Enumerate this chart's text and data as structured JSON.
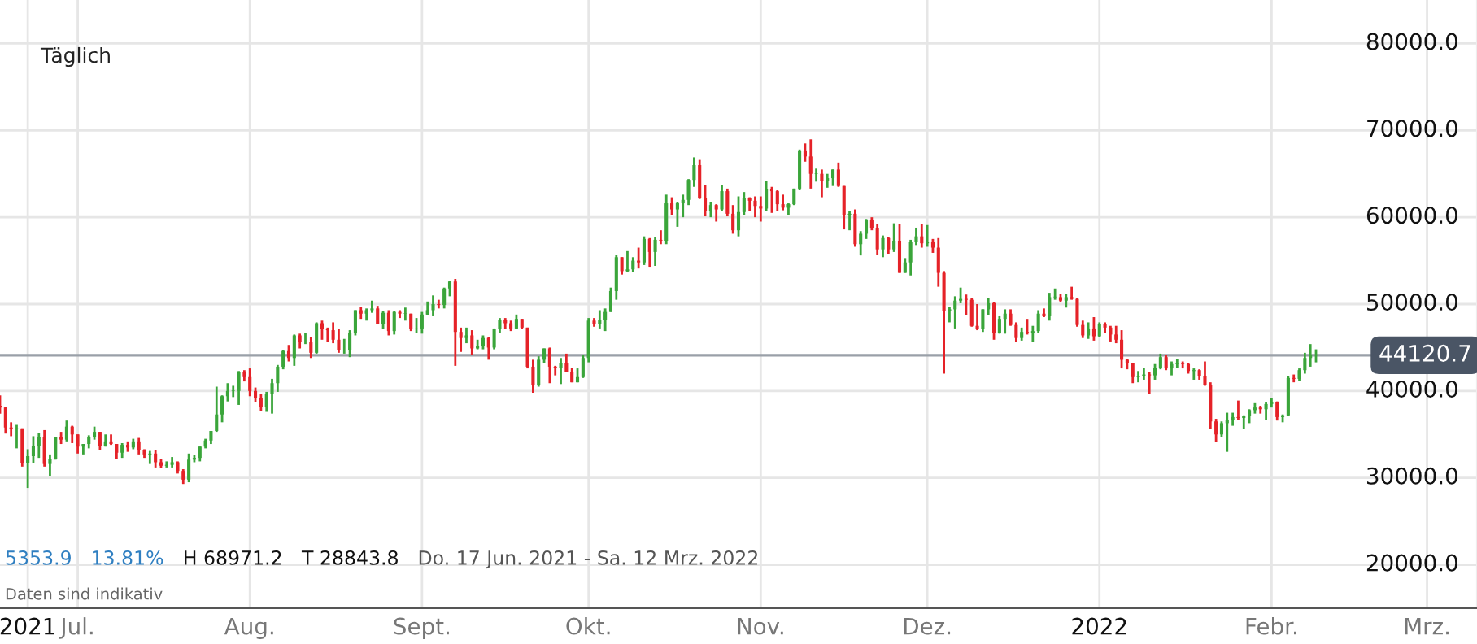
{
  "chart_data": {
    "type": "candlestick",
    "annotations": [
      "Täglich",
      "5353.9",
      "13.81%",
      "H 68971.2",
      "T 28843.8",
      "Do. 17 Jun. 2021 - Sa. 12 Mrz. 2022",
      "Daten sind indikativ"
    ],
    "x": [
      "2021-06-17",
      "2021-06-18",
      "2021-06-19",
      "2021-06-20",
      "2021-06-21",
      "2021-06-22",
      "2021-06-23",
      "2021-06-24",
      "2021-06-25",
      "2021-06-26",
      "2021-06-27",
      "2021-06-28",
      "2021-06-29",
      "2021-06-30",
      "2021-07-01",
      "2021-07-02",
      "2021-07-03",
      "2021-07-04",
      "2021-07-05",
      "2021-07-06",
      "2021-07-07",
      "2021-07-08",
      "2021-07-09",
      "2021-07-10",
      "2021-07-11",
      "2021-07-12",
      "2021-07-13",
      "2021-07-14",
      "2021-07-15",
      "2021-07-16",
      "2021-07-17",
      "2021-07-18",
      "2021-07-19",
      "2021-07-20",
      "2021-07-21",
      "2021-07-22",
      "2021-07-23",
      "2021-07-24",
      "2021-07-25",
      "2021-07-26",
      "2021-07-27",
      "2021-07-28",
      "2021-07-29",
      "2021-07-30",
      "2021-07-31",
      "2021-08-01",
      "2021-08-02",
      "2021-08-03",
      "2021-08-04",
      "2021-08-05",
      "2021-08-06",
      "2021-08-07",
      "2021-08-08",
      "2021-08-09",
      "2021-08-10",
      "2021-08-11",
      "2021-08-12",
      "2021-08-13",
      "2021-08-14",
      "2021-08-15",
      "2021-08-16",
      "2021-08-17",
      "2021-08-18",
      "2021-08-19",
      "2021-08-20",
      "2021-08-21",
      "2021-08-22",
      "2021-08-23",
      "2021-08-24",
      "2021-08-25",
      "2021-08-26",
      "2021-08-27",
      "2021-08-28",
      "2021-08-29",
      "2021-08-30",
      "2021-08-31",
      "2021-09-01",
      "2021-09-02",
      "2021-09-03",
      "2021-09-04",
      "2021-09-05",
      "2021-09-06",
      "2021-09-07",
      "2021-09-08",
      "2021-09-09",
      "2021-09-10",
      "2021-09-11",
      "2021-09-12",
      "2021-09-13",
      "2021-09-14",
      "2021-09-15",
      "2021-09-16",
      "2021-09-17",
      "2021-09-18",
      "2021-09-19",
      "2021-09-20",
      "2021-09-21",
      "2021-09-22",
      "2021-09-23",
      "2021-09-24",
      "2021-09-25",
      "2021-09-26",
      "2021-09-27",
      "2021-09-28",
      "2021-09-29",
      "2021-09-30",
      "2021-10-01",
      "2021-10-02",
      "2021-10-03",
      "2021-10-04",
      "2021-10-05",
      "2021-10-06",
      "2021-10-07",
      "2021-10-08",
      "2021-10-09",
      "2021-10-10",
      "2021-10-11",
      "2021-10-12",
      "2021-10-13",
      "2021-10-14",
      "2021-10-15",
      "2021-10-16",
      "2021-10-17",
      "2021-10-18",
      "2021-10-19",
      "2021-10-20",
      "2021-10-21",
      "2021-10-22",
      "2021-10-23",
      "2021-10-24",
      "2021-10-25",
      "2021-10-26",
      "2021-10-27",
      "2021-10-28",
      "2021-10-29",
      "2021-10-30",
      "2021-10-31",
      "2021-11-01",
      "2021-11-02",
      "2021-11-03",
      "2021-11-04",
      "2021-11-05",
      "2021-11-06",
      "2021-11-07",
      "2021-11-08",
      "2021-11-09",
      "2021-11-10",
      "2021-11-11",
      "2021-11-12",
      "2021-11-13",
      "2021-11-14",
      "2021-11-15",
      "2021-11-16",
      "2021-11-17",
      "2021-11-18",
      "2021-11-19",
      "2021-11-20",
      "2021-11-21",
      "2021-11-22",
      "2021-11-23",
      "2021-11-24",
      "2021-11-25",
      "2021-11-26",
      "2021-11-27",
      "2021-11-28",
      "2021-11-29",
      "2021-11-30",
      "2021-12-01",
      "2021-12-02",
      "2021-12-03",
      "2021-12-04",
      "2021-12-05",
      "2021-12-06",
      "2021-12-07",
      "2021-12-08",
      "2021-12-09",
      "2021-12-10",
      "2021-12-11",
      "2021-12-12",
      "2021-12-13",
      "2021-12-14",
      "2021-12-15",
      "2021-12-16",
      "2021-12-17",
      "2021-12-18",
      "2021-12-19",
      "2021-12-20",
      "2021-12-21",
      "2021-12-22",
      "2021-12-23",
      "2021-12-24",
      "2021-12-25",
      "2021-12-26",
      "2021-12-27",
      "2021-12-28",
      "2021-12-29",
      "2021-12-30",
      "2021-12-31",
      "2022-01-01",
      "2022-01-02",
      "2022-01-03",
      "2022-01-04",
      "2022-01-05",
      "2022-01-06",
      "2022-01-07",
      "2022-01-08",
      "2022-01-09",
      "2022-01-10",
      "2022-01-11",
      "2022-01-12",
      "2022-01-13",
      "2022-01-14",
      "2022-01-15",
      "2022-01-16",
      "2022-01-17",
      "2022-01-18",
      "2022-01-19",
      "2022-01-20",
      "2022-01-21",
      "2022-01-22",
      "2022-01-23",
      "2022-01-24",
      "2022-01-25",
      "2022-01-26",
      "2022-01-27",
      "2022-01-28",
      "2022-01-29",
      "2022-01-30",
      "2022-01-31",
      "2022-02-01",
      "2022-02-02",
      "2022-02-03",
      "2022-02-04",
      "2022-02-05",
      "2022-02-06",
      "2022-02-07",
      "2022-02-08",
      "2022-02-09"
    ],
    "ohlc": [
      [
        38300,
        39500,
        37400,
        38100
      ],
      [
        38100,
        38200,
        35100,
        35800
      ],
      [
        35800,
        36400,
        34800,
        35600
      ],
      [
        35600,
        36100,
        33400,
        35700
      ],
      [
        35700,
        35700,
        31300,
        31700
      ],
      [
        31700,
        33300,
        28843.8,
        32500
      ],
      [
        32500,
        34800,
        31700,
        33700
      ],
      [
        33700,
        35200,
        32300,
        34700
      ],
      [
        34700,
        35500,
        31300,
        31600
      ],
      [
        31600,
        32700,
        30200,
        32200
      ],
      [
        32200,
        34700,
        32100,
        34700
      ],
      [
        34700,
        35300,
        33900,
        34400
      ],
      [
        34400,
        36600,
        34200,
        35900
      ],
      [
        35900,
        36000,
        34000,
        35000
      ],
      [
        35000,
        35000,
        32800,
        33600
      ],
      [
        33600,
        33900,
        32700,
        33900
      ],
      [
        33900,
        34900,
        33400,
        34700
      ],
      [
        34700,
        35900,
        34400,
        35300
      ],
      [
        35300,
        35300,
        33200,
        33700
      ],
      [
        33700,
        35000,
        33600,
        34200
      ],
      [
        34200,
        35000,
        33800,
        33900
      ],
      [
        33900,
        33900,
        32200,
        32900
      ],
      [
        32900,
        34000,
        32300,
        33800
      ],
      [
        33800,
        34200,
        33000,
        33500
      ],
      [
        33500,
        34500,
        33300,
        34200
      ],
      [
        34200,
        34600,
        32700,
        33200
      ],
      [
        33200,
        33300,
        32300,
        32700
      ],
      [
        32700,
        33100,
        31600,
        32800
      ],
      [
        32800,
        33200,
        31200,
        31800
      ],
      [
        31800,
        32200,
        31100,
        31400
      ],
      [
        31400,
        31900,
        31200,
        31500
      ],
      [
        31500,
        32400,
        31200,
        31800
      ],
      [
        31800,
        31900,
        30500,
        30800
      ],
      [
        30800,
        31000,
        29300,
        29800
      ],
      [
        29800,
        32800,
        29500,
        32100
      ],
      [
        32100,
        32600,
        31800,
        32300
      ],
      [
        32300,
        33600,
        31900,
        33600
      ],
      [
        33600,
        34500,
        33400,
        34300
      ],
      [
        34300,
        35400,
        33900,
        35400
      ],
      [
        35400,
        40500,
        35300,
        37300
      ],
      [
        37300,
        39500,
        36400,
        39400
      ],
      [
        39400,
        40900,
        38800,
        40000
      ],
      [
        40000,
        40600,
        39300,
        40000
      ],
      [
        40000,
        42300,
        38400,
        42200
      ],
      [
        42200,
        42400,
        41100,
        41600
      ],
      [
        41600,
        42600,
        39400,
        40000
      ],
      [
        40000,
        40400,
        38700,
        39200
      ],
      [
        39200,
        39700,
        37700,
        38200
      ],
      [
        38200,
        39900,
        37600,
        39700
      ],
      [
        39700,
        41400,
        37400,
        40900
      ],
      [
        40900,
        43000,
        39900,
        42800
      ],
      [
        42800,
        44700,
        42500,
        44600
      ],
      [
        44600,
        45300,
        43400,
        43800
      ],
      [
        43800,
        46500,
        42900,
        46400
      ],
      [
        46400,
        46600,
        44900,
        45600
      ],
      [
        45600,
        46700,
        45400,
        45600
      ],
      [
        45600,
        46200,
        43800,
        44400
      ],
      [
        44400,
        47900,
        44300,
        47800
      ],
      [
        47800,
        48100,
        45900,
        47100
      ],
      [
        47100,
        47300,
        45600,
        47000
      ],
      [
        47000,
        47900,
        45500,
        45900
      ],
      [
        45900,
        47100,
        44400,
        44700
      ],
      [
        44700,
        46000,
        44300,
        44700
      ],
      [
        44700,
        47000,
        43900,
        46700
      ],
      [
        46700,
        49300,
        46400,
        49300
      ],
      [
        49300,
        49700,
        48300,
        48900
      ],
      [
        48900,
        49500,
        48100,
        49300
      ],
      [
        49300,
        50400,
        49000,
        49500
      ],
      [
        49500,
        49800,
        47700,
        47700
      ],
      [
        47700,
        49200,
        47100,
        49000
      ],
      [
        49000,
        49300,
        46400,
        46900
      ],
      [
        46900,
        49200,
        46500,
        49100
      ],
      [
        49100,
        49300,
        48400,
        48900
      ],
      [
        48900,
        49600,
        48100,
        48900
      ],
      [
        48900,
        48900,
        46900,
        47100
      ],
      [
        47100,
        48400,
        46700,
        47200
      ],
      [
        47200,
        49100,
        46600,
        48800
      ],
      [
        48800,
        50300,
        48700,
        49300
      ],
      [
        49300,
        51000,
        48600,
        50000
      ],
      [
        50000,
        50500,
        49500,
        49900
      ],
      [
        49900,
        51900,
        49500,
        51800
      ],
      [
        51800,
        52700,
        50900,
        52600
      ],
      [
        52600,
        52900,
        42900,
        46800
      ],
      [
        46800,
        47300,
        44500,
        46100
      ],
      [
        46100,
        47300,
        45500,
        46400
      ],
      [
        46400,
        47000,
        44200,
        44900
      ],
      [
        44900,
        45900,
        44800,
        45200
      ],
      [
        45200,
        46400,
        44800,
        46100
      ],
      [
        46100,
        46200,
        43600,
        45000
      ],
      [
        45000,
        47200,
        44800,
        47100
      ],
      [
        47100,
        48400,
        46700,
        48200
      ],
      [
        48200,
        48400,
        47100,
        47800
      ],
      [
        47800,
        48100,
        46900,
        47200
      ],
      [
        47200,
        48800,
        47100,
        48300
      ],
      [
        48300,
        48300,
        47100,
        47300
      ],
      [
        47300,
        47300,
        42600,
        42800
      ],
      [
        42800,
        43600,
        39800,
        40700
      ],
      [
        40700,
        44000,
        40500,
        43600
      ],
      [
        43600,
        44900,
        43200,
        44900
      ],
      [
        44900,
        45000,
        40900,
        42800
      ],
      [
        42800,
        42900,
        41800,
        42700
      ],
      [
        42700,
        43800,
        40800,
        43200
      ],
      [
        43200,
        44300,
        42200,
        42200
      ],
      [
        42200,
        42700,
        41000,
        41000
      ],
      [
        41000,
        42600,
        41000,
        41600
      ],
      [
        41600,
        44100,
        41500,
        43800
      ],
      [
        43800,
        48400,
        43300,
        48100
      ],
      [
        48100,
        48400,
        47400,
        47700
      ],
      [
        47700,
        49300,
        47200,
        48200
      ],
      [
        48200,
        49500,
        46900,
        49100
      ],
      [
        49100,
        51900,
        49100,
        51500
      ],
      [
        51500,
        55700,
        50500,
        55400
      ],
      [
        55400,
        55400,
        53400,
        53800
      ],
      [
        53800,
        56100,
        53700,
        54000
      ],
      [
        54000,
        55400,
        53700,
        55000
      ],
      [
        55000,
        56500,
        54100,
        54800
      ],
      [
        54800,
        57800,
        54500,
        57500
      ],
      [
        57500,
        57600,
        54300,
        56000
      ],
      [
        56000,
        57700,
        54400,
        57400
      ],
      [
        57400,
        58500,
        56900,
        57300
      ],
      [
        57300,
        62600,
        56900,
        61600
      ],
      [
        61600,
        62300,
        60200,
        60900
      ],
      [
        60900,
        61700,
        58900,
        61600
      ],
      [
        61600,
        62600,
        60000,
        62000
      ],
      [
        62000,
        64400,
        61400,
        64300
      ],
      [
        64300,
        66900,
        63500,
        66000
      ],
      [
        66000,
        66600,
        62100,
        62200
      ],
      [
        62200,
        63700,
        60100,
        60700
      ],
      [
        60700,
        61700,
        60000,
        61400
      ],
      [
        61400,
        61500,
        59500,
        60900
      ],
      [
        60900,
        63700,
        60700,
        63000
      ],
      [
        63000,
        63300,
        60100,
        60400
      ],
      [
        60400,
        61400,
        58100,
        58500
      ],
      [
        58500,
        62400,
        57800,
        60600
      ],
      [
        60600,
        62900,
        60200,
        62200
      ],
      [
        62200,
        62300,
        60700,
        61900
      ],
      [
        61900,
        62400,
        60000,
        61300
      ],
      [
        61300,
        62400,
        59500,
        61000
      ],
      [
        61000,
        64200,
        60700,
        63200
      ],
      [
        63200,
        63500,
        60500,
        63000
      ],
      [
        63000,
        63100,
        60700,
        61500
      ],
      [
        61500,
        62600,
        60800,
        61100
      ],
      [
        61100,
        61600,
        60200,
        61500
      ],
      [
        61500,
        63300,
        61400,
        63300
      ],
      [
        63300,
        67800,
        63100,
        67600
      ],
      [
        67600,
        68500,
        66400,
        67000
      ],
      [
        67000,
        68971.2,
        63300,
        65000
      ],
      [
        65000,
        65600,
        64100,
        65000
      ],
      [
        65000,
        65500,
        62300,
        64200
      ],
      [
        64200,
        65000,
        63400,
        64500
      ],
      [
        64500,
        65500,
        63600,
        65500
      ],
      [
        65500,
        66300,
        63500,
        63600
      ],
      [
        63600,
        63600,
        58600,
        60200
      ],
      [
        60200,
        60700,
        58500,
        60400
      ],
      [
        60400,
        60900,
        56600,
        56900
      ],
      [
        56900,
        58400,
        55600,
        58100
      ],
      [
        58100,
        59800,
        57500,
        59700
      ],
      [
        59700,
        60000,
        58500,
        58700
      ],
      [
        58700,
        59200,
        55700,
        56300
      ],
      [
        56300,
        57900,
        55400,
        57600
      ],
      [
        57600,
        57700,
        55800,
        56300
      ],
      [
        56300,
        59300,
        56000,
        57300
      ],
      [
        57300,
        59200,
        53600,
        53600
      ],
      [
        53600,
        55300,
        53600,
        54800
      ],
      [
        54800,
        57400,
        53300,
        57200
      ],
      [
        57200,
        58800,
        56800,
        57800
      ],
      [
        57800,
        59200,
        56500,
        57000
      ],
      [
        57000,
        59100,
        56600,
        57200
      ],
      [
        57200,
        57500,
        55900,
        56500
      ],
      [
        56500,
        57600,
        52000,
        53600
      ],
      [
        53600,
        53800,
        42000,
        49200
      ],
      [
        49200,
        49700,
        47900,
        49400
      ],
      [
        49400,
        50900,
        47200,
        50400
      ],
      [
        50400,
        51900,
        50100,
        50600
      ],
      [
        50600,
        51100,
        48700,
        50500
      ],
      [
        50500,
        50700,
        47400,
        47500
      ],
      [
        47500,
        50000,
        47000,
        47100
      ],
      [
        47100,
        49400,
        46800,
        49400
      ],
      [
        49400,
        50700,
        48700,
        50100
      ],
      [
        50100,
        50200,
        45900,
        46700
      ],
      [
        46700,
        48600,
        46600,
        48300
      ],
      [
        48300,
        49400,
        46600,
        48900
      ],
      [
        48900,
        49400,
        47500,
        47600
      ],
      [
        47600,
        47900,
        45600,
        46100
      ],
      [
        46100,
        47300,
        45800,
        46800
      ],
      [
        46800,
        48300,
        46500,
        46700
      ],
      [
        46700,
        47500,
        45600,
        46900
      ],
      [
        46900,
        49300,
        46700,
        48900
      ],
      [
        48900,
        49500,
        48500,
        48600
      ],
      [
        48600,
        51300,
        48100,
        50800
      ],
      [
        50800,
        51800,
        50500,
        50800
      ],
      [
        50800,
        51200,
        50200,
        50400
      ],
      [
        50400,
        51200,
        49600,
        50800
      ],
      [
        50800,
        52000,
        50500,
        50600
      ],
      [
        50600,
        50700,
        47400,
        47600
      ],
      [
        47600,
        48100,
        46100,
        46400
      ],
      [
        46400,
        47900,
        46000,
        47200
      ],
      [
        47200,
        48500,
        45800,
        46300
      ],
      [
        46300,
        47900,
        46200,
        47700
      ],
      [
        47700,
        47900,
        46700,
        47300
      ],
      [
        47300,
        47500,
        45700,
        46500
      ],
      [
        46500,
        47500,
        45500,
        45900
      ],
      [
        45900,
        47000,
        42600,
        43600
      ],
      [
        43600,
        43700,
        42500,
        43200
      ],
      [
        43200,
        43200,
        40900,
        41600
      ],
      [
        41600,
        42300,
        41000,
        41700
      ],
      [
        41700,
        42700,
        41300,
        41900
      ],
      [
        41900,
        42200,
        39700,
        41800
      ],
      [
        41800,
        43100,
        41300,
        42700
      ],
      [
        42700,
        44300,
        42500,
        43900
      ],
      [
        43900,
        44100,
        42400,
        42600
      ],
      [
        42600,
        43400,
        41800,
        43100
      ],
      [
        43100,
        43700,
        42700,
        43200
      ],
      [
        43200,
        43400,
        42600,
        43100
      ],
      [
        43100,
        43200,
        42000,
        42300
      ],
      [
        42300,
        42600,
        41300,
        42400
      ],
      [
        42400,
        42500,
        41300,
        41700
      ],
      [
        41700,
        43400,
        40600,
        40700
      ],
      [
        40700,
        41000,
        35600,
        36500
      ],
      [
        36500,
        36800,
        34100,
        35000
      ],
      [
        35000,
        36500,
        34700,
        36300
      ],
      [
        36300,
        37500,
        33000,
        36700
      ],
      [
        36700,
        37500,
        36000,
        37000
      ],
      [
        37000,
        38900,
        36700,
        36900
      ],
      [
        36900,
        37200,
        35600,
        37100
      ],
      [
        37100,
        37900,
        36300,
        37800
      ],
      [
        37800,
        38600,
        37400,
        38100
      ],
      [
        38100,
        38300,
        37400,
        37900
      ],
      [
        37900,
        38700,
        36700,
        38500
      ],
      [
        38500,
        39200,
        38100,
        38700
      ],
      [
        38700,
        38800,
        36600,
        37000
      ],
      [
        37000,
        37300,
        36400,
        37200
      ],
      [
        37200,
        41700,
        37100,
        41500
      ],
      [
        41500,
        41900,
        41000,
        41400
      ],
      [
        41400,
        42600,
        41200,
        42400
      ],
      [
        42400,
        44400,
        42000,
        43800
      ],
      [
        43800,
        45400,
        42800,
        44100
      ],
      [
        44100,
        44800,
        43300,
        44120.7
      ]
    ],
    "xlim": [
      "2021-06-17",
      "2022-03-10"
    ],
    "xticks": [
      {
        "value": "2021-06-22",
        "label": "2021"
      },
      {
        "value": "2021-07-01",
        "label": "Jul."
      },
      {
        "value": "2021-08-01",
        "label": "Aug."
      },
      {
        "value": "2021-09-01",
        "label": "Sept."
      },
      {
        "value": "2021-10-01",
        "label": "Okt."
      },
      {
        "value": "2021-11-01",
        "label": "Nov."
      },
      {
        "value": "2021-12-01",
        "label": "Dez."
      },
      {
        "value": "2022-01-01",
        "label": "2022"
      },
      {
        "value": "2022-02-01",
        "label": "Febr."
      },
      {
        "value": "2022-03-01",
        "label": "Mrz."
      }
    ],
    "ylim": [
      15000,
      85000
    ],
    "yticks": [
      {
        "value": 20000,
        "label": "20000.0"
      },
      {
        "value": 30000,
        "label": "30000.0"
      },
      {
        "value": 40000,
        "label": "40000.0"
      },
      {
        "value": 50000,
        "label": "50000.0"
      },
      {
        "value": 60000,
        "label": "60000.0"
      },
      {
        "value": 70000,
        "label": "70000.0"
      },
      {
        "value": 80000,
        "label": "80000.0"
      }
    ],
    "ref_lines": [
      {
        "axis": "y",
        "value": 44120.7,
        "label": "44120.7",
        "color": "#9aa0a8"
      }
    ],
    "grid": true
  }
}
